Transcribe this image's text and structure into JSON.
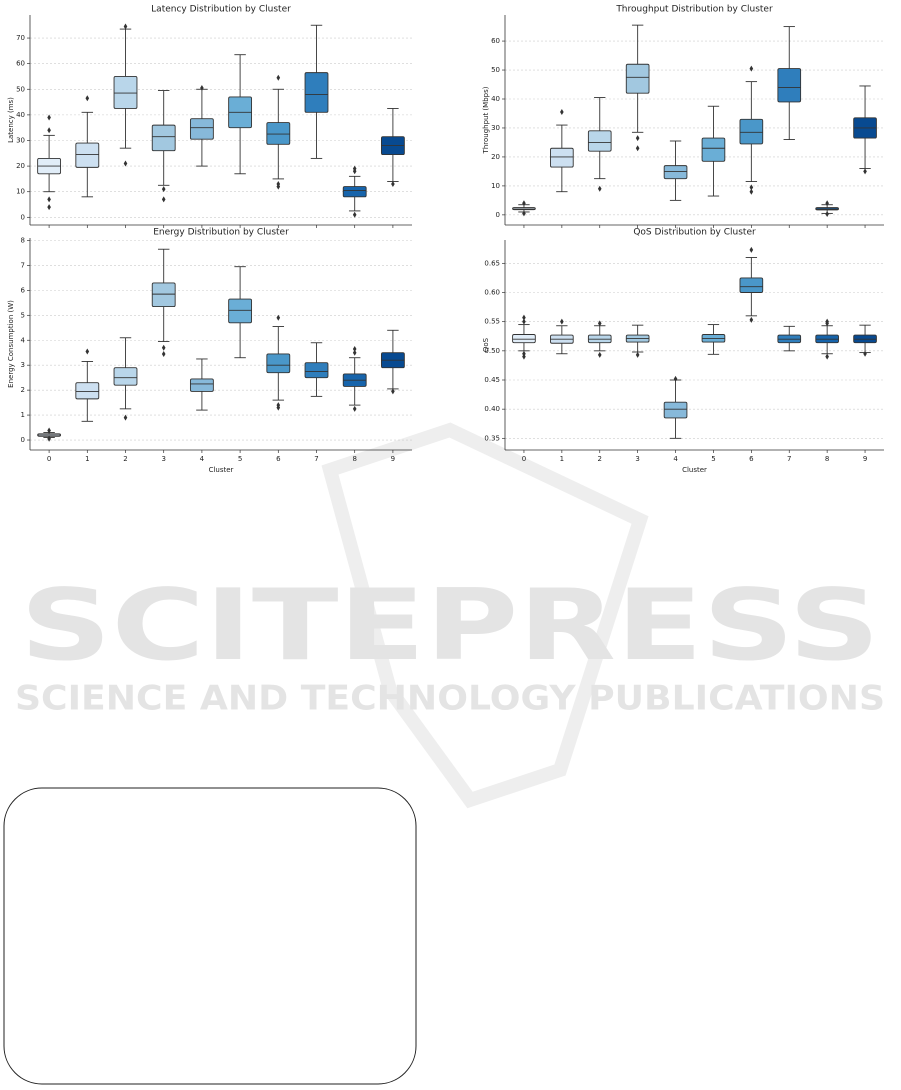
{
  "chart_data": [
    {
      "type": "box",
      "title": "Latency Distribution by Cluster",
      "ylabel": "Latency (ms)",
      "categories": [
        null,
        null,
        null,
        null,
        null,
        null,
        null,
        null,
        null,
        null
      ],
      "ylim": [
        -3,
        79
      ],
      "yticks": [
        0,
        10,
        20,
        30,
        40,
        50,
        60,
        70
      ],
      "grid": true,
      "colors": [
        "#e1edf8",
        "#cde0f1",
        "#b9d6ea",
        "#a2c8e0",
        "#87b9da",
        "#6aaed6",
        "#4a97c9",
        "#2f7ebc",
        "#1764ab",
        "#084a91"
      ],
      "boxes": [
        {
          "whislo": 10,
          "q1": 17,
          "med": 20,
          "q3": 23,
          "whishi": 32,
          "fliers": [
            4,
            7,
            34,
            39
          ]
        },
        {
          "whislo": 8,
          "q1": 19.5,
          "med": 24.5,
          "q3": 29,
          "whishi": 41,
          "fliers": [
            46.5
          ]
        },
        {
          "whislo": 27,
          "q1": 42.5,
          "med": 48.5,
          "q3": 55,
          "whishi": 73.5,
          "fliers": [
            21,
            74.5
          ]
        },
        {
          "whislo": 12.5,
          "q1": 26,
          "med": 31.5,
          "q3": 36,
          "whishi": 49.5,
          "fliers": [
            7,
            11
          ]
        },
        {
          "whislo": 20,
          "q1": 30.5,
          "med": 35,
          "q3": 38.5,
          "whishi": 50,
          "fliers": [
            50.5
          ]
        },
        {
          "whislo": 17,
          "q1": 35,
          "med": 41,
          "q3": 47,
          "whishi": 63.5,
          "fliers": []
        },
        {
          "whislo": 15,
          "q1": 28.5,
          "med": 32.5,
          "q3": 37,
          "whishi": 50,
          "fliers": [
            12,
            13,
            54.5
          ]
        },
        {
          "whislo": 23,
          "q1": 41,
          "med": 48,
          "q3": 56.5,
          "whishi": 75,
          "fliers": []
        },
        {
          "whislo": 2.5,
          "q1": 8,
          "med": 10.5,
          "q3": 12,
          "whishi": 16,
          "fliers": [
            1,
            18,
            19
          ]
        },
        {
          "whislo": 14,
          "q1": 24.5,
          "med": 28,
          "q3": 31.5,
          "whishi": 42.5,
          "fliers": [
            13
          ]
        }
      ]
    },
    {
      "type": "box",
      "title": "Throughput Distribution by Cluster",
      "ylabel": "Throughput (Mbps)",
      "categories": [
        null,
        null,
        null,
        null,
        null,
        null,
        null,
        null,
        null,
        null
      ],
      "ylim": [
        -3.5,
        69
      ],
      "yticks": [
        0,
        10,
        20,
        30,
        40,
        50,
        60
      ],
      "grid": true,
      "colors": [
        "#e1edf8",
        "#cde0f1",
        "#b9d6ea",
        "#a2c8e0",
        "#87b9da",
        "#6aaed6",
        "#4a97c9",
        "#2f7ebc",
        "#1764ab",
        "#084a91"
      ],
      "boxes": [
        {
          "whislo": 1,
          "q1": 1.8,
          "med": 2,
          "q3": 2.5,
          "whishi": 3.5,
          "fliers": [
            0.5,
            4
          ]
        },
        {
          "whislo": 8,
          "q1": 16.5,
          "med": 20,
          "q3": 23,
          "whishi": 31,
          "fliers": [
            35.5
          ]
        },
        {
          "whislo": 12.5,
          "q1": 22,
          "med": 25,
          "q3": 29,
          "whishi": 40.5,
          "fliers": [
            9
          ]
        },
        {
          "whislo": 28.5,
          "q1": 42,
          "med": 47.5,
          "q3": 52,
          "whishi": 65.5,
          "fliers": [
            23,
            26.5
          ]
        },
        {
          "whislo": 5,
          "q1": 12.5,
          "med": 15,
          "q3": 17,
          "whishi": 25.5,
          "fliers": []
        },
        {
          "whislo": 6.5,
          "q1": 18.5,
          "med": 23,
          "q3": 26.5,
          "whishi": 37.5,
          "fliers": []
        },
        {
          "whislo": 11.5,
          "q1": 24.5,
          "med": 28.5,
          "q3": 33,
          "whishi": 46,
          "fliers": [
            8,
            9.5,
            50.5
          ]
        },
        {
          "whislo": 26,
          "q1": 39,
          "med": 44,
          "q3": 50.5,
          "whishi": 65,
          "fliers": []
        },
        {
          "whislo": 0.5,
          "q1": 1.7,
          "med": 2,
          "q3": 2.5,
          "whishi": 3.5,
          "fliers": [
            0.3,
            4
          ]
        },
        {
          "whislo": 16,
          "q1": 26.5,
          "med": 30,
          "q3": 33.5,
          "whishi": 44.5,
          "fliers": [
            15
          ]
        }
      ]
    },
    {
      "type": "box",
      "title": "Energy Distribution by Cluster",
      "ylabel": "Energy Consumption (W)",
      "xlabel": "Cluster",
      "categories": [
        "0",
        "1",
        "2",
        "3",
        "4",
        "5",
        "6",
        "7",
        "8",
        "9"
      ],
      "ylim": [
        -0.4,
        8.1
      ],
      "yticks": [
        0,
        1,
        2,
        3,
        4,
        5,
        6,
        7,
        8
      ],
      "grid": true,
      "colors": [
        "#e1edf8",
        "#cde0f1",
        "#b9d6ea",
        "#a2c8e0",
        "#87b9da",
        "#6aaed6",
        "#4a97c9",
        "#2f7ebc",
        "#1764ab",
        "#084a91"
      ],
      "boxes": [
        {
          "whislo": 0.1,
          "q1": 0.15,
          "med": 0.2,
          "q3": 0.25,
          "whishi": 0.3,
          "fliers": [
            0.05,
            0.38
          ]
        },
        {
          "whislo": 0.75,
          "q1": 1.65,
          "med": 1.95,
          "q3": 2.3,
          "whishi": 3.15,
          "fliers": [
            3.55
          ]
        },
        {
          "whislo": 1.25,
          "q1": 2.2,
          "med": 2.5,
          "q3": 2.9,
          "whishi": 4.1,
          "fliers": [
            0.9
          ]
        },
        {
          "whislo": 3.95,
          "q1": 5.35,
          "med": 5.85,
          "q3": 6.3,
          "whishi": 7.65,
          "fliers": [
            3.45,
            3.7
          ]
        },
        {
          "whislo": 1.2,
          "q1": 1.95,
          "med": 2.25,
          "q3": 2.45,
          "whishi": 3.25,
          "fliers": []
        },
        {
          "whislo": 3.3,
          "q1": 4.7,
          "med": 5.2,
          "q3": 5.65,
          "whishi": 6.95,
          "fliers": []
        },
        {
          "whislo": 1.6,
          "q1": 2.7,
          "med": 3.0,
          "q3": 3.45,
          "whishi": 4.55,
          "fliers": [
            1.3,
            1.4,
            4.9
          ]
        },
        {
          "whislo": 1.75,
          "q1": 2.5,
          "med": 2.75,
          "q3": 3.1,
          "whishi": 3.9,
          "fliers": []
        },
        {
          "whislo": 1.4,
          "q1": 2.15,
          "med": 2.4,
          "q3": 2.65,
          "whishi": 3.3,
          "fliers": [
            1.25,
            3.5,
            3.65
          ]
        },
        {
          "whislo": 2.05,
          "q1": 2.9,
          "med": 3.2,
          "q3": 3.5,
          "whishi": 4.4,
          "fliers": [
            1.95
          ]
        }
      ]
    },
    {
      "type": "box",
      "title": "QoS Distribution by Cluster",
      "ylabel": "QoS",
      "xlabel": "Cluster",
      "categories": [
        "0",
        "1",
        "2",
        "3",
        "4",
        "5",
        "6",
        "7",
        "8",
        "9"
      ],
      "ylim": [
        0.33,
        0.69
      ],
      "yticks": [
        0.35,
        {
          "value": 0.4,
          "label": "0.40"
        },
        0.45,
        {
          "value": 0.5,
          "label": "0.50"
        },
        0.55,
        {
          "value": 0.6,
          "label": "0.60"
        },
        0.65
      ],
      "grid": true,
      "colors": [
        "#e1edf8",
        "#cde0f1",
        "#b9d6ea",
        "#a2c8e0",
        "#87b9da",
        "#6aaed6",
        "#4a97c9",
        "#2f7ebc",
        "#1764ab",
        "#084a91"
      ],
      "boxes": [
        {
          "whislo": 0.5,
          "q1": 0.514,
          "med": 0.52,
          "q3": 0.528,
          "whishi": 0.545,
          "fliers": [
            0.49,
            0.495,
            0.55,
            0.557
          ]
        },
        {
          "whislo": 0.495,
          "q1": 0.513,
          "med": 0.52,
          "q3": 0.527,
          "whishi": 0.543,
          "fliers": [
            0.55
          ]
        },
        {
          "whislo": 0.5,
          "q1": 0.514,
          "med": 0.52,
          "q3": 0.527,
          "whishi": 0.543,
          "fliers": [
            0.493,
            0.547
          ]
        },
        {
          "whislo": 0.498,
          "q1": 0.515,
          "med": 0.521,
          "q3": 0.527,
          "whishi": 0.544,
          "fliers": [
            0.493
          ]
        },
        {
          "whislo": 0.35,
          "q1": 0.385,
          "med": 0.4,
          "q3": 0.412,
          "whishi": 0.45,
          "fliers": [
            0.452
          ]
        },
        {
          "whislo": 0.494,
          "q1": 0.515,
          "med": 0.521,
          "q3": 0.528,
          "whishi": 0.545,
          "fliers": []
        },
        {
          "whislo": 0.56,
          "q1": 0.6,
          "med": 0.61,
          "q3": 0.625,
          "whishi": 0.66,
          "fliers": [
            0.553,
            0.673
          ]
        },
        {
          "whislo": 0.5,
          "q1": 0.514,
          "med": 0.52,
          "q3": 0.527,
          "whishi": 0.542,
          "fliers": []
        },
        {
          "whislo": 0.495,
          "q1": 0.514,
          "med": 0.52,
          "q3": 0.527,
          "whishi": 0.543,
          "fliers": [
            0.49,
            0.55,
            0.547
          ]
        },
        {
          "whislo": 0.497,
          "q1": 0.514,
          "med": 0.52,
          "q3": 0.527,
          "whishi": 0.544,
          "fliers": [
            0.495
          ]
        }
      ]
    }
  ],
  "watermark": {
    "title": "SCITEPRESS",
    "subtitle": "SCIENCE AND TECHNOLOGY PUBLICATIONS"
  }
}
